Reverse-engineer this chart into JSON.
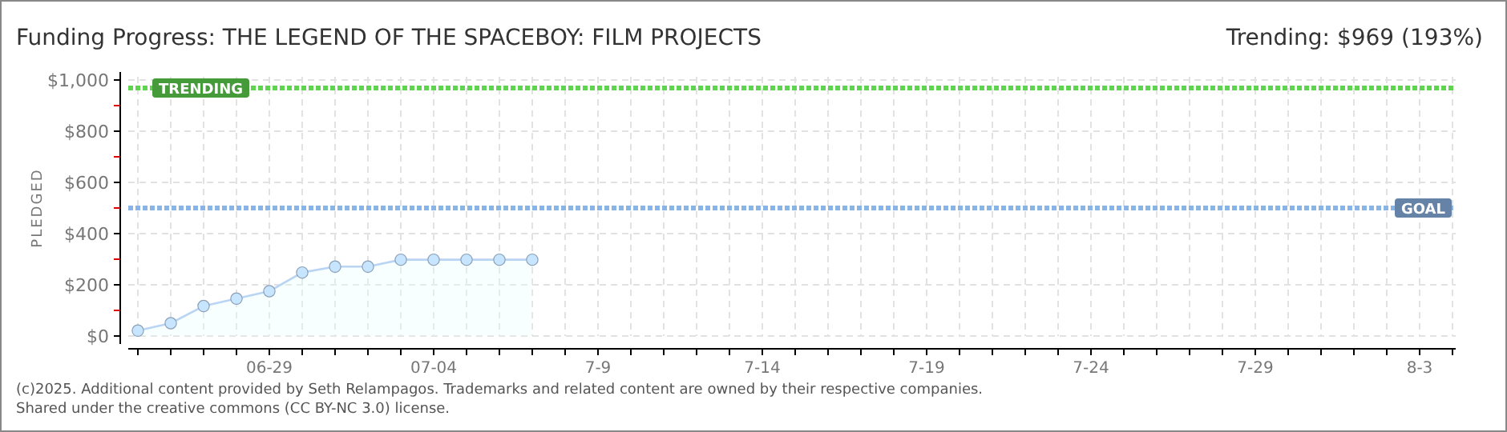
{
  "chart_data": {
    "type": "area",
    "title": "Funding Progress: THE LEGEND OF THE SPACEBOY: FILM PROJECTS",
    "subtitle": "Trending: $969 (193%)",
    "ylabel": "PLEDGED",
    "x": [
      "--06-25",
      "--06-26",
      "--06-27",
      "--06-28",
      "--06-29",
      "--06-30",
      "--07-01",
      "--07-02",
      "--07-03",
      "--07-04",
      "--07-05",
      "--07-06",
      "--07-07"
    ],
    "series": [
      {
        "color": "#b9d5f3",
        "values": [
          21,
          50,
          117,
          146,
          175,
          248,
          271,
          271,
          298,
          298,
          298,
          298,
          298
        ]
      }
    ],
    "marker": "circle",
    "grid": true,
    "xlim": [
      "--06-25",
      "--08-04"
    ],
    "xticks": [
      {
        "value": "--06-25",
        "label": null
      },
      {
        "value": "--06-26",
        "label": null
      },
      {
        "value": "--06-27",
        "label": null
      },
      {
        "value": "--06-28",
        "label": null
      },
      {
        "value": "--06-29",
        "label": "06-29"
      },
      {
        "value": "--06-30",
        "label": null
      },
      {
        "value": "--07-01",
        "label": null
      },
      {
        "value": "--07-02",
        "label": null
      },
      {
        "value": "--07-03",
        "label": null
      },
      {
        "value": "--07-04",
        "label": "07-04"
      },
      {
        "value": "--07-05",
        "label": null
      },
      {
        "value": "--07-06",
        "label": null
      },
      {
        "value": "--07-07",
        "label": null
      },
      {
        "value": "--07-08",
        "label": null
      },
      {
        "value": "--07-09",
        "label": "7-9"
      },
      {
        "value": "--07-10",
        "label": null
      },
      {
        "value": "--07-11",
        "label": null
      },
      {
        "value": "--07-12",
        "label": null
      },
      {
        "value": "--07-13",
        "label": null
      },
      {
        "value": "--07-14",
        "label": "7-14"
      },
      {
        "value": "--07-15",
        "label": null
      },
      {
        "value": "--07-16",
        "label": null
      },
      {
        "value": "--07-17",
        "label": null
      },
      {
        "value": "--07-18",
        "label": null
      },
      {
        "value": "--07-19",
        "label": "7-19"
      },
      {
        "value": "--07-20",
        "label": null
      },
      {
        "value": "--07-21",
        "label": null
      },
      {
        "value": "--07-22",
        "label": null
      },
      {
        "value": "--07-23",
        "label": null
      },
      {
        "value": "--07-24",
        "label": "7-24"
      },
      {
        "value": "--07-25",
        "label": null
      },
      {
        "value": "--07-26",
        "label": null
      },
      {
        "value": "--07-27",
        "label": null
      },
      {
        "value": "--07-28",
        "label": null
      },
      {
        "value": "--07-29",
        "label": "7-29"
      },
      {
        "value": "--07-30",
        "label": null
      },
      {
        "value": "--07-31",
        "label": null
      },
      {
        "value": "--08-01",
        "label": null
      },
      {
        "value": "--08-02",
        "label": null
      },
      {
        "value": "--08-03",
        "label": "8-3"
      },
      {
        "value": "--08-04",
        "label": null
      }
    ],
    "ylim": [
      0,
      1000
    ],
    "yticks": [
      {
        "value": 0,
        "label": "$0"
      },
      {
        "value": 100,
        "label": null
      },
      {
        "value": 200,
        "label": "$200"
      },
      {
        "value": 300,
        "label": null
      },
      {
        "value": 400,
        "label": "$400"
      },
      {
        "value": 500,
        "label": null
      },
      {
        "value": 600,
        "label": "$600"
      },
      {
        "value": 700,
        "label": null
      },
      {
        "value": 800,
        "label": "$800"
      },
      {
        "value": 900,
        "label": null
      },
      {
        "value": 1000,
        "label": "$1,000"
      }
    ],
    "ref_lines": [
      {
        "axis": "y",
        "value": 969,
        "label": "TRENDING",
        "color": "#5fd44f",
        "line_style": "dotted"
      },
      {
        "axis": "y",
        "value": 500,
        "label": "GOAL",
        "color": "#8ab4e6",
        "line_style": "dotted"
      }
    ],
    "annotations": [
      "(c)2025. Additional content provided by Seth Relampagos. Trademarks and related content are owned by their respective companies.",
      "Shared under the creative commons (CC BY-NC 3.0) license."
    ]
  }
}
